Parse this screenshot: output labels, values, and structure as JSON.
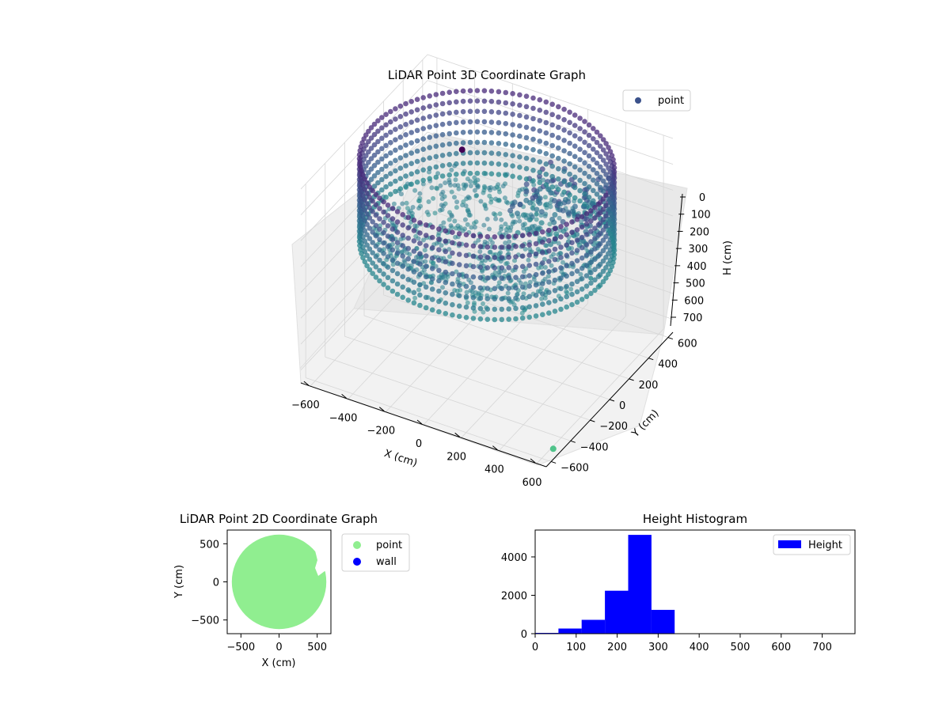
{
  "chart_data": [
    {
      "type": "scatter",
      "projection": "3d",
      "title": "LiDAR Point 3D Coordinate Graph",
      "xlabel": "X (cm)",
      "ylabel": "Y (cm)",
      "zlabel": "H (cm)",
      "xlim": [
        -650,
        650
      ],
      "ylim": [
        -650,
        650
      ],
      "zlim": [
        750,
        0
      ],
      "xticks": [
        "−600",
        "−400",
        "−200",
        "0",
        "200",
        "400",
        "600"
      ],
      "yticks": [
        "−600",
        "−400",
        "−200",
        "0",
        "200",
        "400",
        "600"
      ],
      "zticks": [
        "0",
        "100",
        "200",
        "300",
        "400",
        "500",
        "600",
        "700"
      ],
      "grid": true,
      "colormap": "viridis",
      "legend": {
        "position": "top-right",
        "entries": [
          "point"
        ]
      },
      "series": [
        {
          "name": "point",
          "shape": "cylindrical room scan",
          "wall_radius": 600,
          "wall_height_range": [
            0,
            330
          ],
          "points": [
            {
              "x": -250,
              "y": 230,
              "h": 100
            },
            {
              "x": 620,
              "y": -520,
              "h": 740
            }
          ]
        }
      ]
    },
    {
      "type": "scatter",
      "title": "LiDAR Point 2D Coordinate Graph",
      "xlabel": "X (cm)",
      "ylabel": "Y (cm)",
      "xlim": [
        -680,
        680
      ],
      "ylim": [
        -680,
        680
      ],
      "xticks": [
        "−500",
        "0",
        "500"
      ],
      "yticks": [
        "−500",
        "0",
        "500"
      ],
      "grid": false,
      "legend": {
        "position": "outside-right",
        "entries": [
          "point",
          "wall"
        ]
      },
      "series": [
        {
          "name": "point",
          "color": "#90ee90",
          "shape": "filled disc",
          "radius": 620
        },
        {
          "name": "wall",
          "color": "#0000ff",
          "points": []
        }
      ]
    },
    {
      "type": "bar",
      "title": "Height Histogram",
      "xlim": [
        0,
        780
      ],
      "ylim": [
        0,
        5400
      ],
      "xticks": [
        "0",
        "100",
        "200",
        "300",
        "400",
        "500",
        "600",
        "700"
      ],
      "yticks": [
        "0",
        "2000",
        "4000"
      ],
      "legend": {
        "position": "top-right",
        "entries": [
          "Height"
        ]
      },
      "series": [
        {
          "name": "Height",
          "color": "#0000ff",
          "bin_width": 56.7,
          "bins_start": [
            0,
            56.7,
            113.4,
            170.1,
            226.8,
            283.5,
            340.2,
            396.9,
            453.6,
            510.3,
            567,
            623.7,
            680.4,
            737.1
          ],
          "values": [
            40,
            270,
            720,
            2240,
            5150,
            1240,
            15,
            8,
            6,
            5,
            4,
            3,
            2,
            2
          ]
        }
      ]
    }
  ]
}
